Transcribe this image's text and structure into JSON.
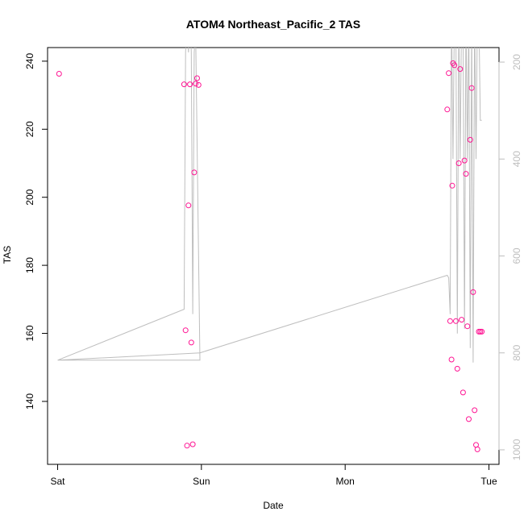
{
  "chart_data": {
    "type": "scatter",
    "title": "ATOM4 Northeast_Pacific_2 TAS",
    "xlabel": "Date",
    "ylabel": "TAS",
    "x_ticks": [
      {
        "label": "Sat",
        "value": 0
      },
      {
        "label": "Sun",
        "value": 1
      },
      {
        "label": "Mon",
        "value": 2
      },
      {
        "label": "Tue",
        "value": 3
      }
    ],
    "xlim": [
      -0.07,
      3.07
    ],
    "ylim": [
      121.5,
      244
    ],
    "y_ticks": [
      140,
      160,
      180,
      200,
      220,
      240
    ],
    "y2_ticks": [
      200,
      400,
      600,
      800,
      1000
    ],
    "y2lim": [
      1030,
      170
    ],
    "point_color": "#ff1493",
    "line_color": "#bebebe",
    "series": [
      {
        "type": "points",
        "x": [
          0.01,
          0.88,
          0.89,
          0.9,
          0.91,
          0.92,
          0.93,
          0.94,
          0.95,
          0.96,
          0.97,
          0.98,
          2.71,
          2.72,
          2.73,
          2.74,
          2.745,
          2.75,
          2.76,
          2.77,
          2.78,
          2.79,
          2.8,
          2.81,
          2.82,
          2.83,
          2.84,
          2.85,
          2.86,
          2.87,
          2.88,
          2.89,
          2.9,
          2.91,
          2.92,
          2.93,
          2.94,
          2.95
        ],
        "y": [
          236.3,
          233.2,
          160.9,
          127.0,
          197.6,
          233.2,
          157.3,
          127.4,
          207.3,
          233.4,
          235.0,
          233.0,
          225.8,
          236.5,
          163.6,
          152.3,
          203.4,
          239.4,
          238.8,
          163.6,
          149.6,
          210.0,
          237.7,
          164.0,
          142.6,
          210.8,
          206.9,
          162.1,
          134.8,
          216.9,
          232.1,
          172.1,
          137.4,
          127.2,
          125.9,
          160.5,
          160.5,
          160.5
        ]
      },
      {
        "type": "line",
        "x": [
          0.0,
          0.88,
          0.89,
          0.9,
          0.91,
          0.92,
          0.93,
          0.94,
          0.95,
          0.96,
          0.99,
          0.0,
          0.99,
          2.71,
          2.72,
          2.73,
          2.74,
          2.75,
          2.76,
          2.77,
          2.78,
          2.79,
          2.8,
          2.81,
          2.82,
          2.83,
          2.84,
          2.85,
          2.86,
          2.87,
          2.88,
          2.89,
          2.9,
          2.91,
          2.92,
          2.93,
          2.94,
          2.95
        ],
        "y2": [
          815,
          710,
          180,
          100,
          180,
          100,
          180,
          720,
          180,
          140,
          815,
          815,
          800,
          640,
          645,
          720,
          100,
          400,
          100,
          120,
          760,
          100,
          400,
          100,
          120,
          750,
          100,
          400,
          100,
          790,
          110,
          820,
          100,
          400,
          100,
          100,
          320,
          320
        ]
      }
    ]
  }
}
